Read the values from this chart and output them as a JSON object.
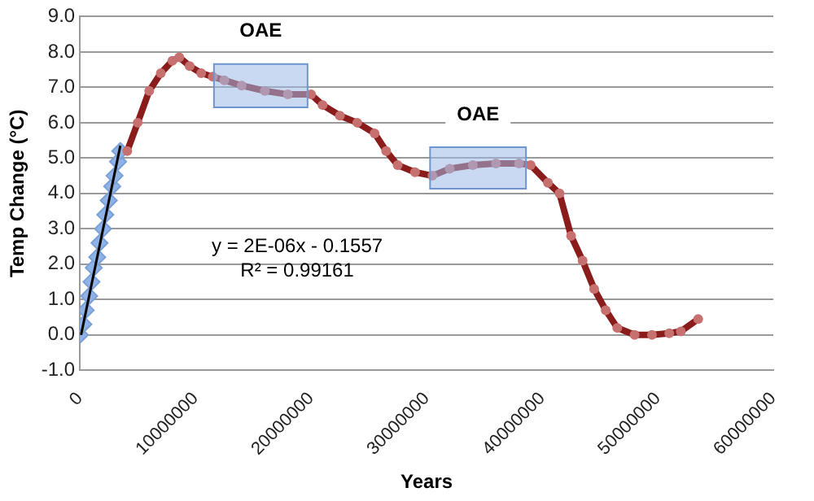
{
  "chart_data": {
    "type": "scatter",
    "xlabel": "Years",
    "ylabel": "Temp Change (°C)",
    "xlim": [
      0,
      60000000
    ],
    "xticks": [
      0,
      10000000,
      20000000,
      30000000,
      40000000,
      50000000,
      60000000
    ],
    "ylim": [
      -1,
      9
    ],
    "yticks": [
      {
        "value": -1,
        "label": "-1.0"
      },
      {
        "value": 0,
        "label": "0.0"
      },
      {
        "value": 1,
        "label": "1.0"
      },
      {
        "value": 2,
        "label": "2.0"
      },
      {
        "value": 3,
        "label": "3.0"
      },
      {
        "value": 4,
        "label": "4.0"
      },
      {
        "value": 5,
        "label": "5.0"
      },
      {
        "value": 6,
        "label": "6.0"
      },
      {
        "value": 7,
        "label": "7.0"
      },
      {
        "value": 8,
        "label": "8.0"
      },
      {
        "value": 9,
        "label": "9.0"
      }
    ],
    "grid": "y",
    "legend": false,
    "series": [
      {
        "marker": "diamond",
        "color": "#8fb3e6",
        "x": [
          0,
          300000,
          500000,
          800000,
          1000000,
          1200000,
          1500000,
          1700000,
          2000000,
          2200000,
          2500000,
          2800000,
          3000000,
          3300000,
          3500000
        ],
        "values": [
          0.0,
          0.3,
          0.7,
          1.1,
          1.5,
          1.9,
          2.2,
          2.6,
          3.0,
          3.4,
          3.8,
          4.2,
          4.5,
          4.9,
          5.2
        ]
      },
      {
        "type": "line",
        "marker": "circle",
        "line_style": "solid",
        "color": "#8b1c1c",
        "x": [
          4100000,
          5000000,
          6000000,
          7000000,
          8000000,
          8600000,
          9500000,
          10500000,
          11500000,
          12500000,
          14000000,
          16000000,
          18000000,
          20000000,
          21000000,
          22500000,
          24000000,
          25500000,
          26500000,
          27500000,
          29000000,
          30500000,
          32000000,
          34000000,
          36000000,
          38000000,
          39000000,
          40500000,
          41500000,
          42500000,
          43500000,
          44500000,
          45500000,
          46500000,
          48000000,
          49500000,
          51000000,
          52000000,
          53500000
        ],
        "values": [
          5.2,
          6.0,
          6.9,
          7.4,
          7.75,
          7.85,
          7.6,
          7.4,
          7.3,
          7.2,
          7.05,
          6.9,
          6.8,
          6.8,
          6.5,
          6.2,
          6.0,
          5.7,
          5.2,
          4.8,
          4.6,
          4.5,
          4.7,
          4.8,
          4.85,
          4.85,
          4.8,
          4.3,
          4.0,
          2.8,
          2.1,
          1.3,
          0.7,
          0.2,
          0.0,
          0.0,
          0.05,
          0.1,
          0.45
        ]
      },
      {
        "type": "line",
        "marker": "none",
        "color": "#000000",
        "x": [
          100000,
          3500000
        ],
        "values": [
          0.0,
          5.35
        ]
      }
    ],
    "bands": [
      {
        "axis": "x",
        "from": 11600000,
        "to": 19700000,
        "label": "OAE",
        "color": "#9db9e8"
      },
      {
        "axis": "x",
        "from": 30300000,
        "to": 38600000,
        "label": "OAE",
        "color": "#9db9e8"
      }
    ],
    "annotations": [
      "y = 2E-06x - 0.1557\nR² = 0.99161"
    ]
  }
}
